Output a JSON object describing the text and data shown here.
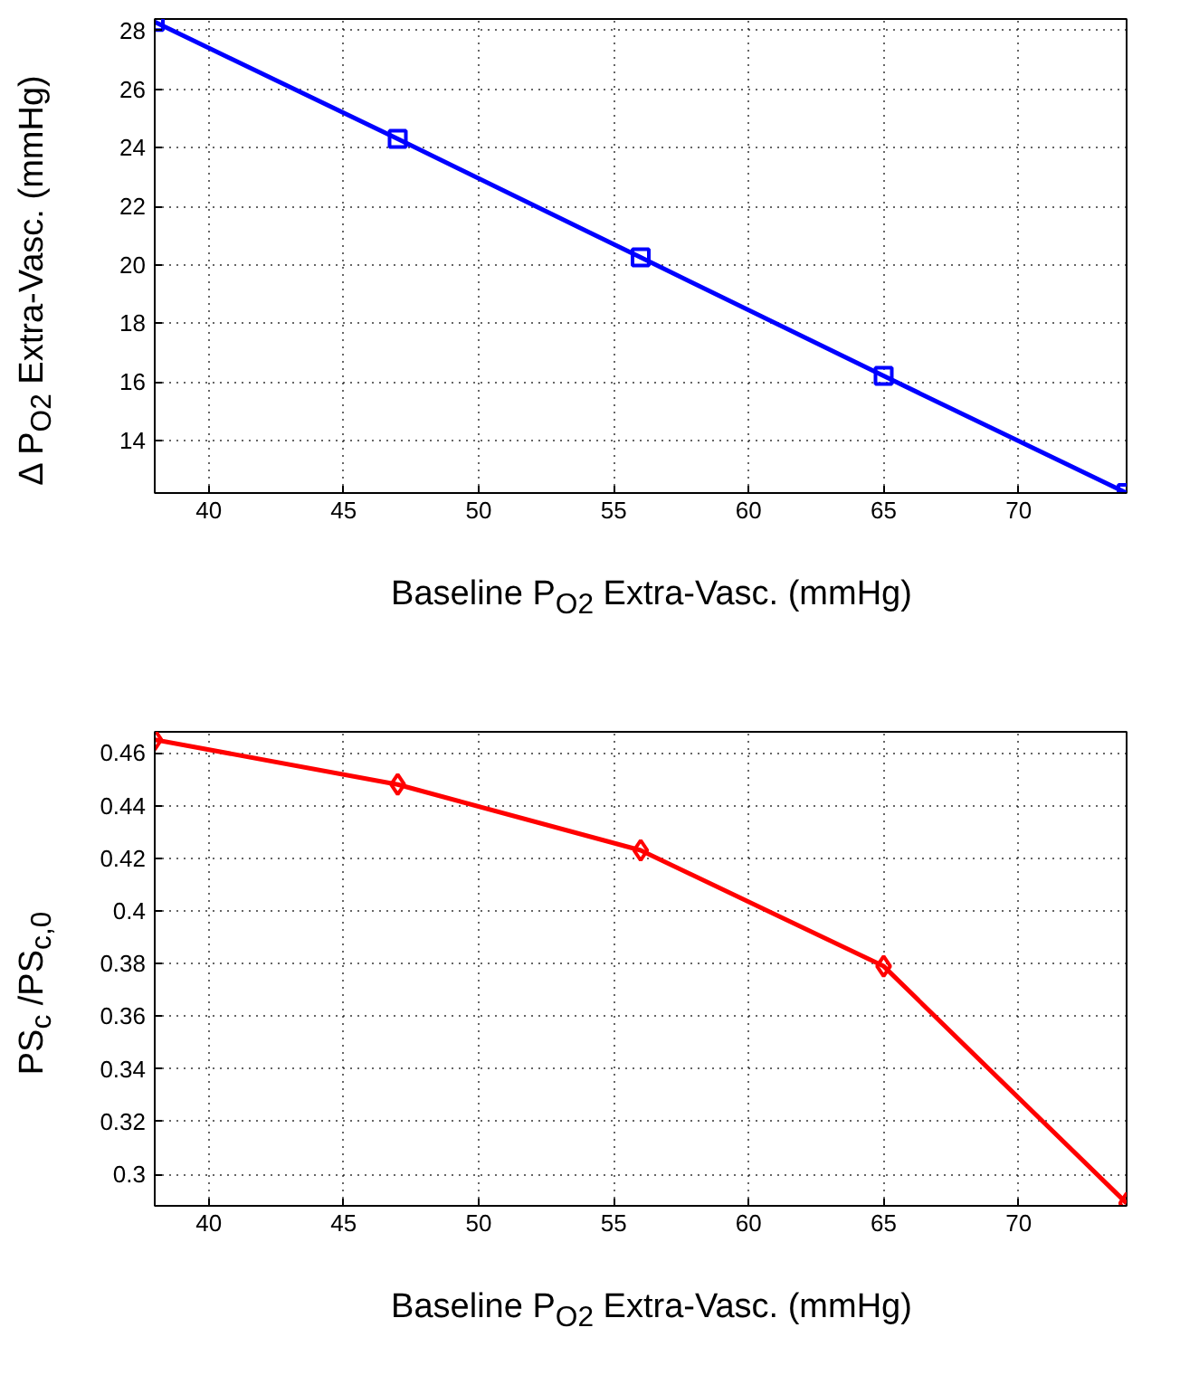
{
  "chart_data": [
    {
      "type": "line",
      "xlabel": "Baseline P$_{O2}$ Extra-Vasc. (mmHg)",
      "ylabel": "Δ P$_{O2}$ Extra-Vasc. (mmHg)",
      "x": [
        38,
        47,
        56,
        65,
        74
      ],
      "series": [
        {
          "color": "#0000ff",
          "values": [
            28.3,
            24.3,
            20.25,
            16.2,
            12.2
          ]
        }
      ],
      "xlim": [
        38,
        74
      ],
      "ylim": [
        12.2,
        28.4
      ],
      "xticks": [
        40,
        45,
        50,
        55,
        60,
        65,
        70
      ],
      "yticks": [
        14,
        16,
        18,
        20,
        22,
        24,
        26,
        28
      ],
      "grid": true,
      "marker": "square",
      "line_style": "solid"
    },
    {
      "type": "line",
      "xlabel": "Baseline P$_{O2}$ Extra-Vasc. (mmHg)",
      "ylabel": "PS$_{c}$ /PS$_{c,0}$",
      "x": [
        38,
        47,
        56,
        65,
        74
      ],
      "series": [
        {
          "color": "#ff0000",
          "values": [
            0.465,
            0.448,
            0.423,
            0.379,
            0.289
          ]
        }
      ],
      "xlim": [
        38,
        74
      ],
      "ylim": [
        0.288,
        0.468
      ],
      "xticks": [
        40,
        45,
        50,
        55,
        60,
        65,
        70
      ],
      "yticks": [
        0.3,
        0.32,
        0.34,
        0.36,
        0.38,
        0.4,
        0.42,
        0.44,
        0.46
      ],
      "grid": true,
      "marker": "diamond",
      "line_style": "solid"
    }
  ]
}
